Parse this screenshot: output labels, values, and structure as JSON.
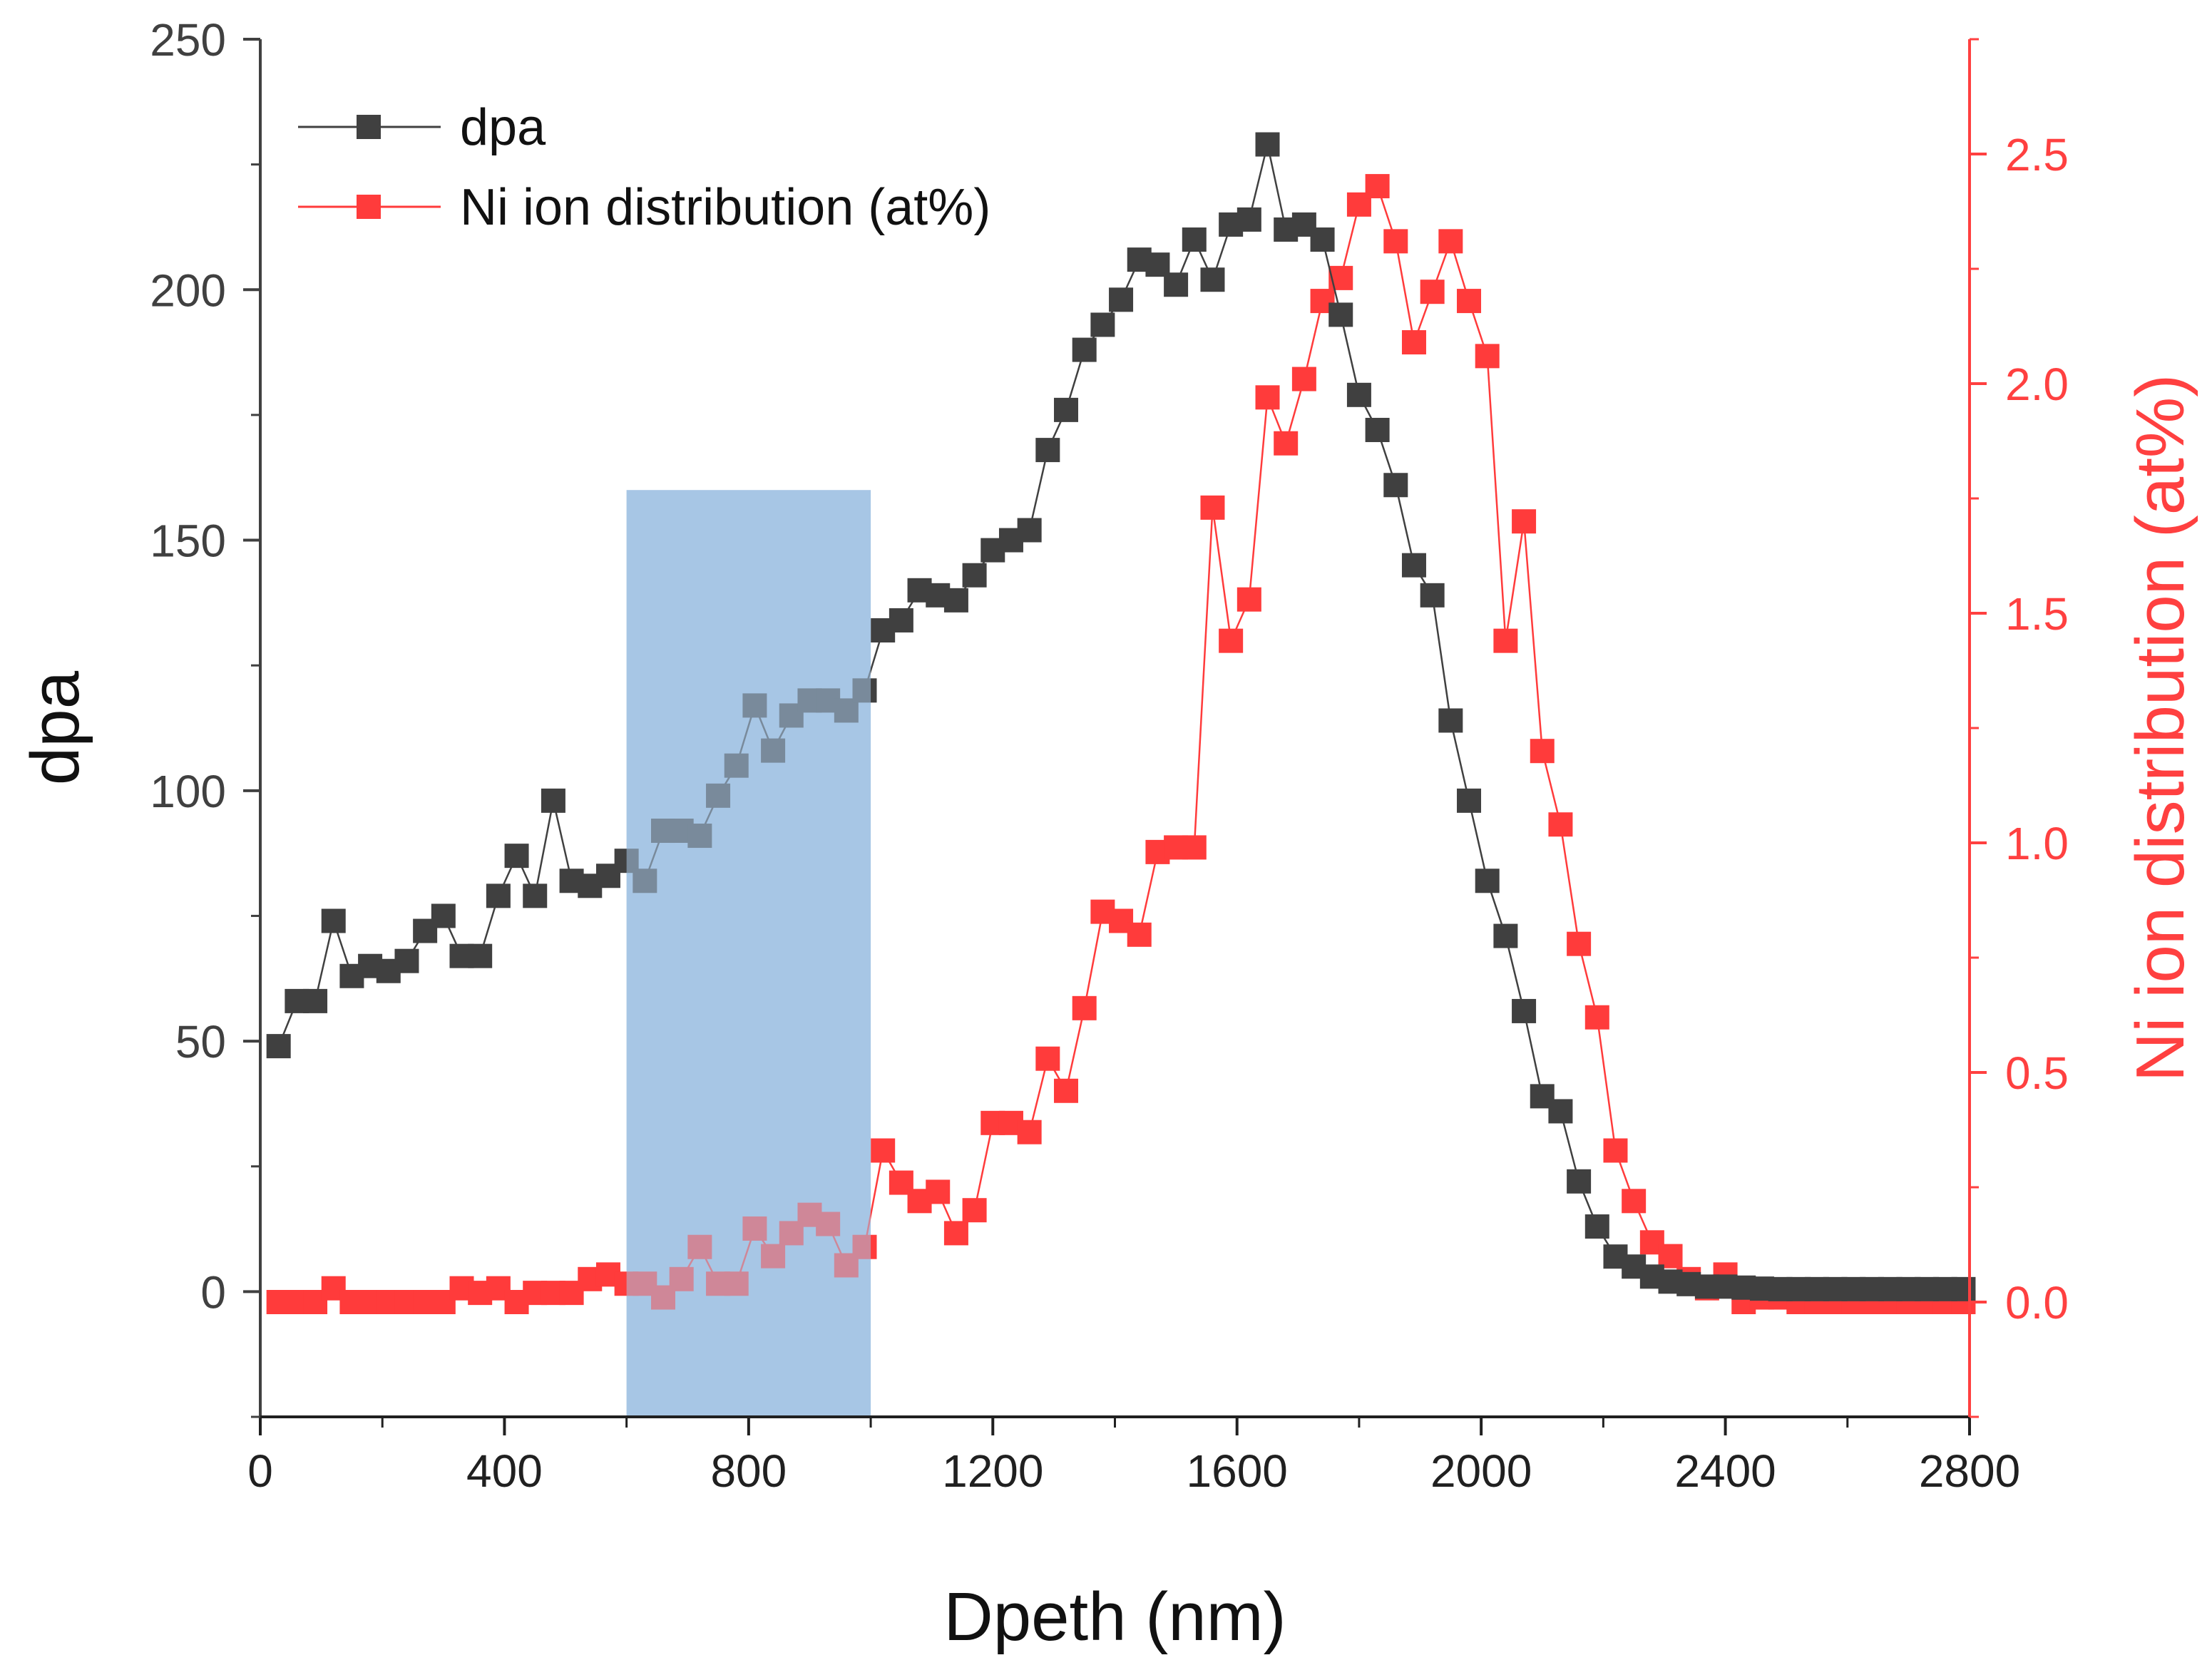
{
  "chart_data": {
    "type": "scatter",
    "title": "",
    "xlabel": "Dpeth (nm)",
    "ylabel": "dpa",
    "y2label": "Ni ion distribution (at%)",
    "xlim": [
      0,
      2800
    ],
    "ylim": [
      -25,
      250
    ],
    "y2lim": [
      -0.25,
      2.75
    ],
    "xticks": [
      "0",
      "400",
      "800",
      "1200",
      "1600",
      "2000",
      "2400",
      "2800"
    ],
    "yticks": [
      "0",
      "50",
      "100",
      "150",
      "200",
      "250"
    ],
    "y2ticks": [
      "0.0",
      "0.5",
      "1.0",
      "1.5",
      "2.0",
      "2.5"
    ],
    "highlight_region": {
      "x_from": 600,
      "x_to": 1000,
      "y_from": -25,
      "y_to": 160,
      "color": "#a7c6e5"
    },
    "legend_position": "top-left",
    "colors": {
      "dpa": "#404040",
      "ni": "#ff3b3b",
      "highlight": "#a7c6e5"
    },
    "series": [
      {
        "name": "dpa",
        "axis": "left",
        "color": "#404040",
        "x": [
          30,
          60,
          90,
          120,
          150,
          180,
          210,
          240,
          270,
          300,
          330,
          360,
          390,
          420,
          450,
          480,
          510,
          540,
          570,
          600,
          630,
          660,
          690,
          720,
          750,
          780,
          810,
          840,
          870,
          900,
          930,
          960,
          990,
          1020,
          1050,
          1080,
          1110,
          1140,
          1170,
          1200,
          1230,
          1260,
          1290,
          1320,
          1350,
          1380,
          1410,
          1440,
          1470,
          1500,
          1530,
          1560,
          1590,
          1620,
          1650,
          1680,
          1710,
          1740,
          1770,
          1800,
          1830,
          1860,
          1890,
          1920,
          1950,
          1980,
          2010,
          2040,
          2070,
          2100,
          2130,
          2160,
          2190,
          2220,
          2250,
          2280,
          2310,
          2340,
          2370,
          2400,
          2430,
          2460,
          2490,
          2520,
          2550,
          2580,
          2610,
          2640,
          2670,
          2700,
          2730,
          2760,
          2790
        ],
        "values": [
          49,
          58,
          58,
          74,
          63,
          65,
          64,
          66,
          72,
          75,
          67,
          67,
          79,
          87,
          79,
          98,
          82,
          81,
          83,
          86,
          82,
          92,
          92,
          91,
          99,
          105,
          117,
          108,
          115,
          118,
          118,
          116,
          120,
          132,
          134,
          140,
          139,
          138,
          143,
          148,
          150,
          152,
          168,
          176,
          188,
          193,
          198,
          206,
          205,
          201,
          210,
          202,
          213,
          214,
          229,
          212,
          213,
          210,
          195,
          179,
          172,
          161,
          145,
          139,
          114,
          98,
          82,
          71,
          56,
          39,
          36,
          22,
          13,
          7,
          5,
          3,
          2,
          1.5,
          1,
          1,
          0.8,
          0.6,
          0.5,
          0.5,
          0.5,
          0.5,
          0.5,
          0.5,
          0.5,
          0.5,
          0.5,
          0.5,
          0.5
        ]
      },
      {
        "name": "Ni ion distribution (at%)",
        "axis": "right",
        "color": "#ff3b3b",
        "x": [
          30,
          60,
          90,
          120,
          150,
          180,
          210,
          240,
          270,
          300,
          330,
          360,
          390,
          420,
          450,
          480,
          510,
          540,
          570,
          600,
          630,
          660,
          690,
          720,
          750,
          780,
          810,
          840,
          870,
          900,
          930,
          960,
          990,
          1020,
          1050,
          1080,
          1110,
          1140,
          1170,
          1200,
          1230,
          1260,
          1290,
          1320,
          1350,
          1380,
          1410,
          1440,
          1470,
          1500,
          1530,
          1560,
          1590,
          1620,
          1650,
          1680,
          1710,
          1740,
          1770,
          1800,
          1830,
          1860,
          1890,
          1920,
          1950,
          1980,
          2010,
          2040,
          2070,
          2100,
          2130,
          2160,
          2190,
          2220,
          2250,
          2280,
          2310,
          2340,
          2370,
          2400,
          2430,
          2460,
          2490,
          2520,
          2550,
          2580,
          2610,
          2640,
          2670,
          2700,
          2730,
          2760,
          2790
        ],
        "values": [
          0.0,
          0.0,
          0.0,
          0.03,
          0.0,
          0.0,
          0.0,
          0.0,
          0.0,
          0.0,
          0.03,
          0.02,
          0.03,
          0.0,
          0.02,
          0.02,
          0.02,
          0.05,
          0.06,
          0.04,
          0.04,
          0.01,
          0.05,
          0.12,
          0.04,
          0.04,
          0.16,
          0.1,
          0.15,
          0.19,
          0.17,
          0.08,
          0.12,
          0.33,
          0.26,
          0.22,
          0.24,
          0.15,
          0.2,
          0.39,
          0.39,
          0.37,
          0.53,
          0.46,
          0.64,
          0.85,
          0.83,
          0.8,
          0.98,
          0.99,
          0.99,
          1.73,
          1.44,
          1.53,
          1.97,
          1.87,
          2.01,
          2.18,
          2.23,
          2.39,
          2.43,
          2.31,
          2.09,
          2.2,
          2.31,
          2.18,
          2.06,
          1.44,
          1.7,
          1.2,
          1.04,
          0.78,
          0.62,
          0.33,
          0.22,
          0.13,
          0.1,
          0.05,
          0.03,
          0.06,
          0.0,
          0.01,
          0.01,
          0.0,
          0.0,
          0.0,
          0.0,
          0.0,
          0.0,
          0.0,
          0.0,
          0.0,
          0.0
        ]
      }
    ]
  }
}
